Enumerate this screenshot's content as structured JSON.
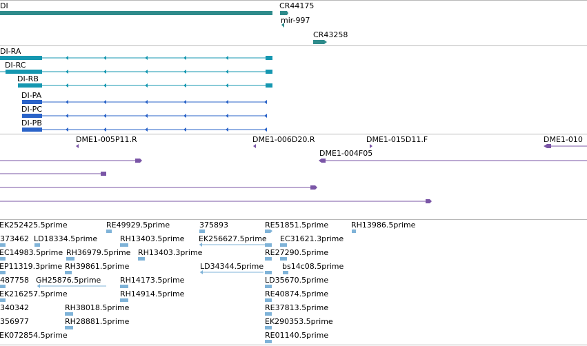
{
  "colors": {
    "gene": "#2e8b8b",
    "mrna_cds": "#1597b0",
    "protein": "#2a63c8",
    "clone": "#7a55a6",
    "est": "#7fb3d8"
  },
  "icons": {
    "strand_arrow": "arrowhead-icon"
  },
  "tracks": {
    "genes": {
      "labels": [
        "DI",
        "CR44175",
        "mir-997",
        "CR43258"
      ]
    },
    "transcripts": {
      "labels": [
        "DI-RA",
        "DI-RC",
        "DI-RB"
      ]
    },
    "proteins": {
      "labels": [
        "DI-PA",
        "DI-PC",
        "DI-PB"
      ]
    },
    "clones": {
      "labels": [
        "DME1-005P11.R",
        "DME1-006D20.R",
        "DME1-015D11.F",
        "DME1-010",
        "DME1-004F05"
      ]
    },
    "ests": {
      "labels": [
        "EK252425.5prime",
        "RE49929.5prime",
        "375893",
        "RE51851.5prime",
        "RH13986.5prime",
        "373462",
        "LD18334.5prime",
        "RH13403.5prime",
        "EK256627.5prime",
        "EC31621.3prime",
        "EC14983.5prime",
        "RH36979.5prime",
        "RH13403.3prime",
        "RE27290.5prime",
        "EP11319.3prime",
        "RH39861.5prime",
        "LD34344.5prime",
        "bs14c08.5prime",
        "487758",
        "GH25876.5prime",
        "RH14173.5prime",
        "LD35670.5prime",
        "EK216257.5prime",
        "RH14914.5prime",
        "RE40874.5prime",
        "340342",
        "RH38018.5prime",
        "RE37813.5prime",
        "356977",
        "RH28881.5prime",
        "EK290353.5prime",
        "EK072854.5prime",
        "RE01140.5prime"
      ]
    }
  }
}
